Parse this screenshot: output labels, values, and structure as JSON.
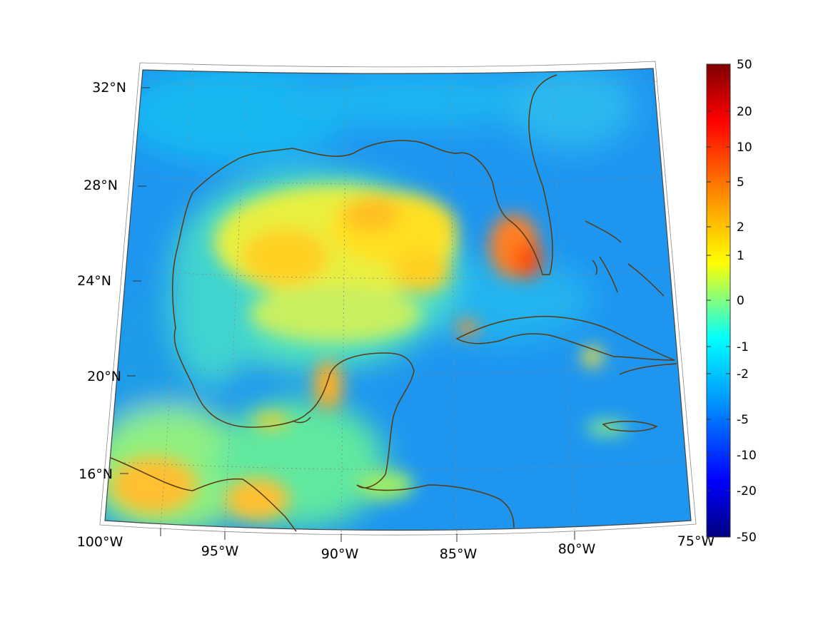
{
  "map": {
    "lon_labels": [
      "100°W",
      "95°W",
      "90°W",
      "85°W",
      "80°W",
      "75°W"
    ],
    "lat_labels": [
      "16°N",
      "20°N",
      "24°N",
      "28°N",
      "32°N"
    ],
    "lon_range": [
      -100,
      -75
    ],
    "lat_range": [
      14,
      33
    ],
    "grid": true,
    "coastline_color": "#5a3a10",
    "colormap": "jet"
  },
  "colorbar": {
    "tick_labels": [
      "50",
      "20",
      "10",
      "5",
      "2",
      "1",
      "0",
      "-1",
      "-2",
      "-5",
      "-10",
      "-20",
      "-50"
    ],
    "placement": "right"
  }
}
